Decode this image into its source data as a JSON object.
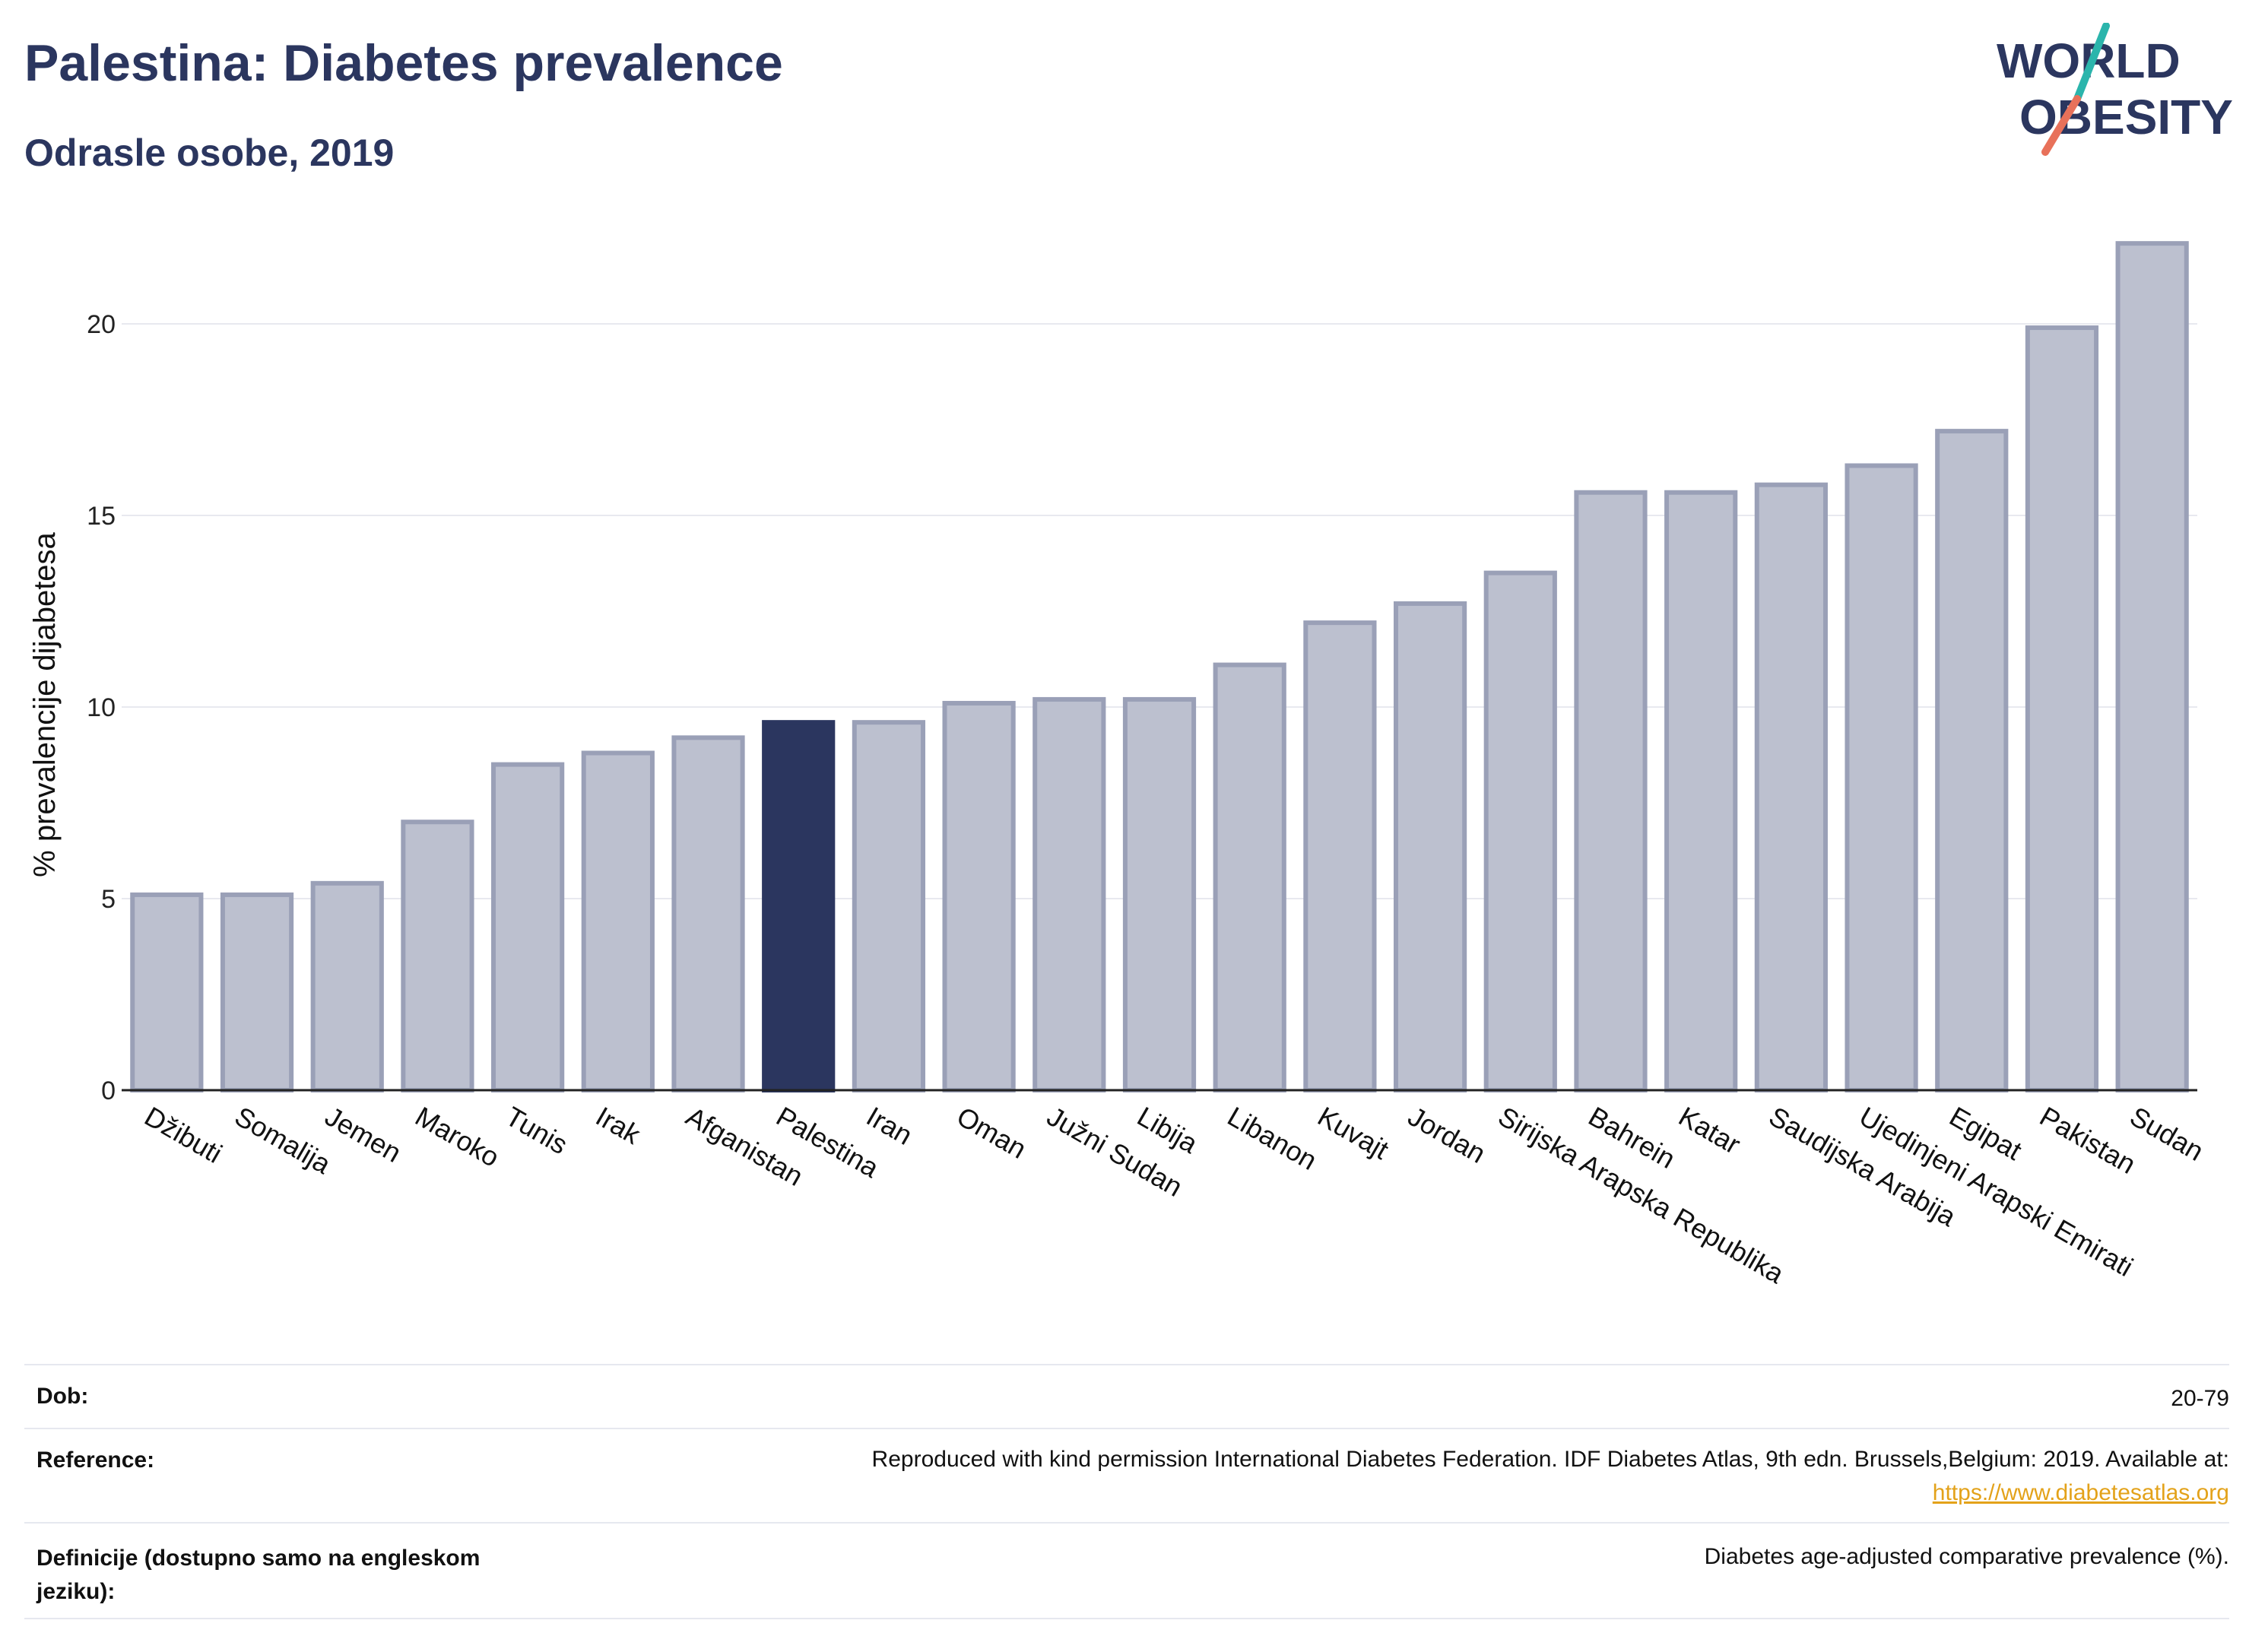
{
  "header": {
    "title": "Palestina: Diabetes prevalence",
    "subtitle": "Odrasle osobe, 2019"
  },
  "logo": {
    "line1": "WORLD",
    "line2": "OBESITY",
    "slash_top_color": "#2bb5ac",
    "slash_bottom_color": "#e8715a",
    "text_color": "#2b365f"
  },
  "chart_data": {
    "type": "bar",
    "ylabel": "% prevalencije dijabetesa",
    "ylim": [
      0,
      22.5
    ],
    "yticks": [
      0,
      5,
      10,
      15,
      20
    ],
    "grid": true,
    "highlight": "Palestina",
    "colors": {
      "bar": "#bcc0cf",
      "bar_edge": "#9aa0b7",
      "highlight": "#2b365f"
    },
    "categories": [
      "Džibuti",
      "Somalija",
      "Jemen",
      "Maroko",
      "Tunis",
      "Irak",
      "Afganistan",
      "Palestina",
      "Iran",
      "Oman",
      "Južni Sudan",
      "Libija",
      "Libanon",
      "Kuvajt",
      "Jordan",
      "Sirijska Arapska Republika",
      "Bahrein",
      "Katar",
      "Saudijska Arabija",
      "Ujedinjeni Arapski Emirati",
      "Egipat",
      "Pakistan",
      "Sudan"
    ],
    "values": [
      5.1,
      5.1,
      5.4,
      7.0,
      8.5,
      8.8,
      9.2,
      9.6,
      9.6,
      10.1,
      10.2,
      10.2,
      11.1,
      12.2,
      12.7,
      13.5,
      15.6,
      15.6,
      15.8,
      16.3,
      17.2,
      19.9,
      22.1
    ]
  },
  "meta": {
    "age_label": "Dob:",
    "age_value": "20-79",
    "reference_label": "Reference:",
    "reference_text": "Reproduced with kind permission International Diabetes Federation. IDF Diabetes Atlas, 9th edn. Brussels,Belgium: 2019. Available at:",
    "reference_link": "https://www.diabetesatlas.org",
    "definition_label_line1": "Definicije (dostupno samo na engleskom",
    "definition_label_line2": "jeziku):",
    "definition_text": "Diabetes age-adjusted comparative prevalence (%)."
  }
}
